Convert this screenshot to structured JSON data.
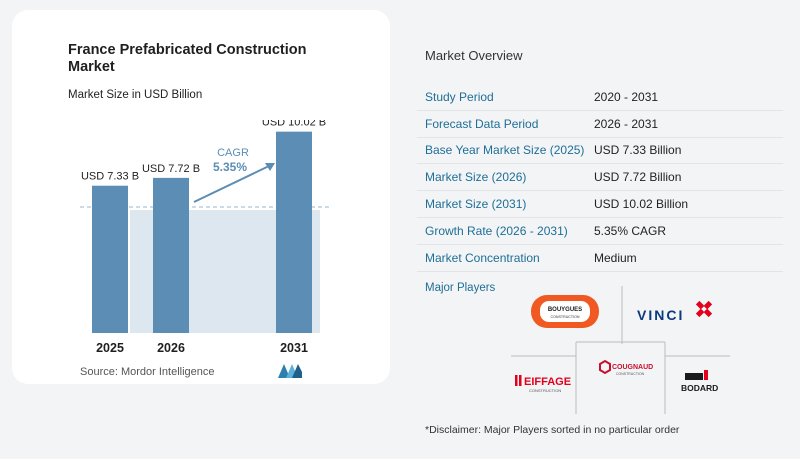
{
  "chart_card": {
    "title": "France Prefabricated Construction Market",
    "subtitle": "Market Size in USD Billion",
    "source": "Source:  Mordor Intelligence"
  },
  "chart_data": {
    "type": "bar",
    "categories": [
      "2025",
      "2026",
      "2031"
    ],
    "values": [
      7.33,
      7.72,
      10.02
    ],
    "value_labels": [
      "USD 7.33 B",
      "USD 7.72 B",
      "USD 10.02 B"
    ],
    "title": "France Prefabricated Construction Market",
    "subtitle": "Market Size in USD Billion",
    "ylim": [
      0,
      10.6
    ],
    "cagr_label": "CAGR",
    "cagr_value": "5.35%",
    "bar_color": "#5b8db5",
    "shade_color": "#dde7f0"
  },
  "overview": {
    "title": "Market Overview",
    "rows": [
      {
        "label": "Study Period",
        "value": "2020 - 2031"
      },
      {
        "label": "Forecast Data Period",
        "value": "2026 - 2031"
      },
      {
        "label": "Base Year Market Size (2025)",
        "value": "USD 7.33 Billion"
      },
      {
        "label": "Market Size (2026)",
        "value": "USD 7.72 Billion"
      },
      {
        "label": "Market Size (2031)",
        "value": "USD 10.02 Billion"
      },
      {
        "label": "Growth Rate (2026 - 2031)",
        "value": "5.35% CAGR"
      },
      {
        "label": "Market Concentration",
        "value": "Medium"
      }
    ]
  },
  "players": {
    "label": "Major Players",
    "logos": [
      "BOUYGUES",
      "CONSTRUCTION",
      "VINCI",
      "EIFFAGE",
      "CONSTRUCTION",
      "COUGNAUD",
      "CONSTRUCTION",
      "BODARD"
    ]
  },
  "disclaimer": "*Disclaimer: Major Players sorted in no particular order"
}
